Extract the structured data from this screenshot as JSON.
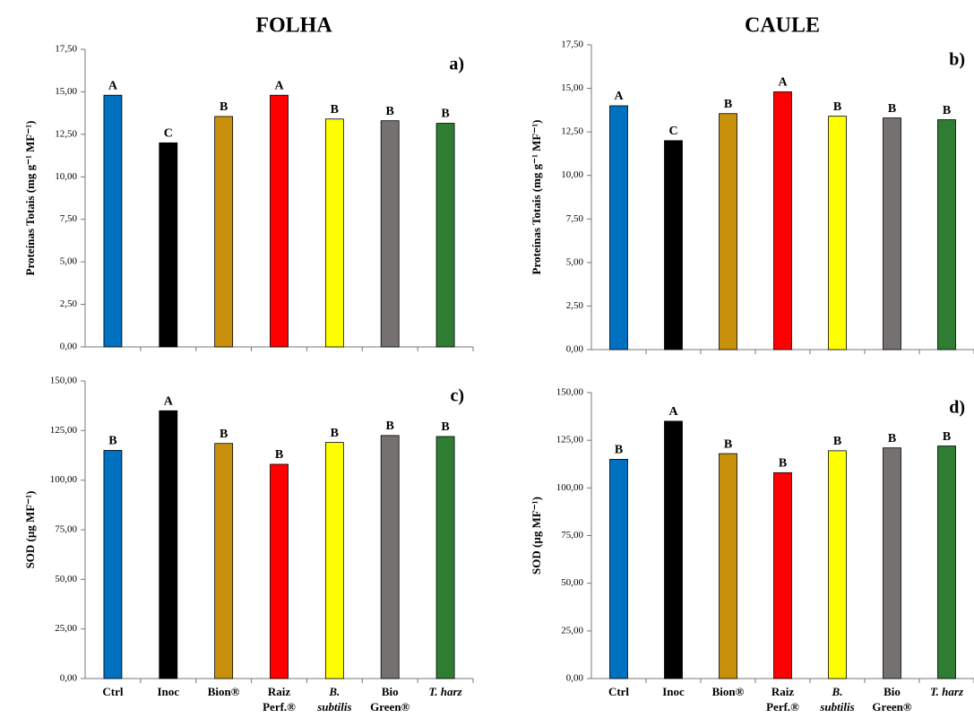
{
  "headers": [
    "FOLHA",
    "CAULE"
  ],
  "chart_data": [
    {
      "type": "bar",
      "panel": "a)",
      "ylabel": "Proteínas Totais (mg g⁻¹ MF⁻¹)",
      "categories": [
        null,
        null,
        null,
        null,
        null,
        null,
        null
      ],
      "values": [
        14.8,
        12.0,
        13.55,
        14.8,
        13.4,
        13.3,
        13.15
      ],
      "value_labels": [
        "A",
        "C",
        "B",
        "A",
        "B",
        "B",
        "B"
      ],
      "colors": [
        "#0070c0",
        "#000000",
        "#c9900c",
        "#ff0000",
        "#ffff00",
        "#767171",
        "#2e7d32"
      ],
      "ylim": [
        0,
        17.5
      ],
      "yticks": [
        {
          "value": 0,
          "label": "0,00"
        },
        {
          "value": 2.5,
          "label": "2,50"
        },
        {
          "value": 5,
          "label": "5,00"
        },
        {
          "value": 7.5,
          "label": "7,50"
        },
        {
          "value": 10,
          "label": "10,00"
        },
        {
          "value": 12.5,
          "label": "12,50"
        },
        {
          "value": 15,
          "label": "15,00"
        },
        {
          "value": 17.5,
          "label": "17,50"
        }
      ]
    },
    {
      "type": "bar",
      "panel": "b)",
      "ylabel": "Proteínas Totais (mg g⁻¹ MF⁻¹)",
      "categories": [
        null,
        null,
        null,
        null,
        null,
        null,
        null
      ],
      "values": [
        14.0,
        12.0,
        13.55,
        14.8,
        13.4,
        13.3,
        13.2
      ],
      "value_labels": [
        "A",
        "C",
        "B",
        "A",
        "B",
        "B",
        "B"
      ],
      "colors": [
        "#0070c0",
        "#000000",
        "#c9900c",
        "#ff0000",
        "#ffff00",
        "#767171",
        "#2e7d32"
      ],
      "ylim": [
        0,
        17.5
      ],
      "yticks": [
        {
          "value": 0,
          "label": "0,00"
        },
        {
          "value": 2.5,
          "label": "2,50"
        },
        {
          "value": 5,
          "label": "5,00"
        },
        {
          "value": 7.5,
          "label": "7,50"
        },
        {
          "value": 10,
          "label": "10,00"
        },
        {
          "value": 12.5,
          "label": "12,50"
        },
        {
          "value": 15,
          "label": "15,00"
        },
        {
          "value": 17.5,
          "label": "17,50"
        }
      ]
    },
    {
      "type": "bar",
      "panel": "c)",
      "ylabel": "SOD (µg MF⁻¹)",
      "categories": [
        "Ctrl",
        "Inoc",
        "Bion®",
        "Raiz\nPerf.®",
        "B.\nsubtilis",
        "Bio\nGreen®",
        "T. harz"
      ],
      "categories_italic": [
        false,
        false,
        false,
        false,
        true,
        false,
        true
      ],
      "values": [
        115,
        135,
        118.5,
        108,
        119,
        122.5,
        122
      ],
      "value_labels": [
        "B",
        "A",
        "B",
        "B",
        "B",
        "B",
        "B"
      ],
      "colors": [
        "#0070c0",
        "#000000",
        "#c9900c",
        "#ff0000",
        "#ffff00",
        "#767171",
        "#2e7d32"
      ],
      "ylim": [
        0,
        150
      ],
      "yticks": [
        {
          "value": 0,
          "label": "0,00"
        },
        {
          "value": 25,
          "label": "25,00"
        },
        {
          "value": 50,
          "label": "50,00"
        },
        {
          "value": 75,
          "label": "75,00"
        },
        {
          "value": 100,
          "label": "100,00"
        },
        {
          "value": 125,
          "label": "125,00"
        },
        {
          "value": 150,
          "label": "150,00"
        }
      ]
    },
    {
      "type": "bar",
      "panel": "d)",
      "ylabel": "SOD (µg MF⁻¹)",
      "categories": [
        "Ctrl",
        "Inoc",
        "Bion®",
        "Raiz\nPerf.®",
        "B.\nsubtilis",
        "Bio\nGreen®",
        "T. harz"
      ],
      "categories_italic": [
        false,
        false,
        false,
        false,
        true,
        false,
        true
      ],
      "values": [
        115,
        135,
        118,
        108,
        119.5,
        121,
        122
      ],
      "value_labels": [
        "B",
        "A",
        "B",
        "B",
        "B",
        "B",
        "B"
      ],
      "colors": [
        "#0070c0",
        "#000000",
        "#c9900c",
        "#ff0000",
        "#ffff00",
        "#767171",
        "#2e7d32"
      ],
      "ylim": [
        0,
        150
      ],
      "yticks": [
        {
          "value": 0,
          "label": "0,00"
        },
        {
          "value": 25,
          "label": "25,00"
        },
        {
          "value": 50,
          "label": "50,00"
        },
        {
          "value": 75,
          "label": "75,00"
        },
        {
          "value": 100,
          "label": "100,00"
        },
        {
          "value": 125,
          "label": "125,00"
        },
        {
          "value": 150,
          "label": "150,00"
        }
      ]
    }
  ]
}
